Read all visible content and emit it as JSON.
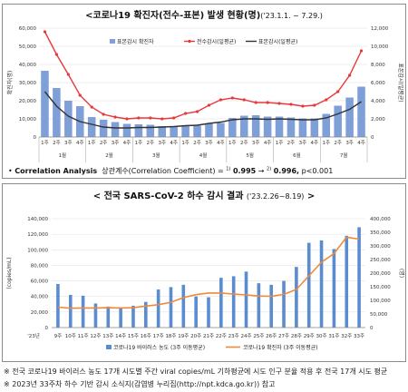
{
  "chart_data": [
    {
      "type": "bar",
      "title": "<코로나19 확진자(전수-표본) 발생 현황(명)",
      "title_sub": "('23.1.1. ~ 7.29.)",
      "ylabel_left": "확진자(명)",
      "ylabel_right": "표본감시(일평균)",
      "ylim_left": [
        0,
        60000
      ],
      "ylim_right": [
        0,
        12000
      ],
      "left_ticks": [
        "0",
        "10,000",
        "20,000",
        "30,000",
        "40,000",
        "50,000",
        "60,000"
      ],
      "right_ticks": [
        "0",
        "2,000",
        "4,000",
        "6,000",
        "8,000",
        "10,000",
        "12,000"
      ],
      "week_labels": [
        "1주",
        "2주",
        "3주",
        "4주",
        "1주",
        "2주",
        "3주",
        "4주",
        "1주",
        "2주",
        "3주",
        "4주",
        "1주",
        "2주",
        "3주",
        "4주",
        "1주",
        "2주",
        "3주",
        "4주",
        "1주",
        "2주",
        "3주",
        "4주",
        "1주",
        "2주",
        "3주",
        "4주"
      ],
      "month_labels": [
        "1월",
        "2월",
        "3월",
        "4월",
        "5월",
        "6월",
        "7월"
      ],
      "series": [
        {
          "name": "표본감시 확진자",
          "kind": "bar",
          "axis": "right",
          "color": "#7f9fd8",
          "values": [
            7300,
            5400,
            4000,
            3400,
            2200,
            1900,
            1650,
            1450,
            1400,
            1350,
            1200,
            1200,
            1250,
            1250,
            1450,
            1550,
            2100,
            2350,
            2400,
            2250,
            2250,
            2150,
            2050,
            2050,
            2550,
            3450,
            4350,
            5550
          ]
        },
        {
          "name": "전수감시(일평균)",
          "kind": "line",
          "axis": "left",
          "color": "#e8383d",
          "values": [
            58000,
            45500,
            34500,
            23000,
            16500,
            12500,
            11000,
            10000,
            10500,
            10500,
            10000,
            10500,
            13000,
            14000,
            17500,
            20500,
            21500,
            20500,
            19000,
            19000,
            18500,
            18000,
            17000,
            17500,
            20500,
            25000,
            34000,
            47500
          ]
        },
        {
          "name": "표본감시(일평균)",
          "kind": "line",
          "axis": "right",
          "color": "#333333",
          "values": [
            5000,
            3400,
            2300,
            1700,
            1400,
            1100,
            1000,
            1000,
            1050,
            1050,
            1100,
            1150,
            1250,
            1300,
            1500,
            1650,
            1900,
            2000,
            2000,
            1950,
            2000,
            1950,
            1900,
            1900,
            2100,
            2550,
            3050,
            3900
          ]
        }
      ],
      "correlation": {
        "label": "Correlation Analysis",
        "text": "상관계수(Correlation Coefficient) = ",
        "sup1": "1)",
        "v1": "0.995",
        "arrow": " → ",
        "sup2": "2)",
        "v2": "0.996,",
        "p": " p<0.001"
      }
    },
    {
      "type": "bar",
      "title": "< 전국 SARS-CoV-2 하수 감시 결과",
      "title_sub": "('23.2.26~8.19)",
      "ylabel_left": "(copies/mL)",
      "ylabel_right": "(명)",
      "ylim_left": [
        0,
        140000
      ],
      "ylim_right": [
        0,
        400000
      ],
      "left_ticks": [
        "0",
        "20,000",
        "40,000",
        "60,000",
        "80,000",
        "100,000",
        "120,000",
        "140,000"
      ],
      "right_ticks": [
        "0",
        "50,000",
        "100,000",
        "150,000",
        "200,000",
        "250,000",
        "300,000",
        "350,000",
        "400,000"
      ],
      "year_label": "'23년",
      "categories": [
        "9주",
        "10주",
        "11주",
        "12주",
        "13주",
        "14주",
        "15주",
        "16주",
        "17주",
        "18주",
        "19주",
        "20주",
        "21주",
        "22주",
        "23주",
        "24주",
        "25주",
        "26주",
        "27주",
        "28주",
        "29주",
        "30주",
        "31주",
        "32주",
        "33주"
      ],
      "series": [
        {
          "name": "코로나19 바이러스 농도 (3주 이동평균)",
          "kind": "bar",
          "axis": "left",
          "color": "#5b8bd0",
          "values": [
            56000,
            42000,
            41000,
            31000,
            27000,
            26000,
            28000,
            33000,
            49000,
            52000,
            55000,
            40000,
            39000,
            64000,
            66000,
            72000,
            57000,
            55000,
            60000,
            78000,
            109000,
            112000,
            101000,
            118000,
            129000
          ]
        },
        {
          "name": "코로나19 확진자 (3주 이동평균)",
          "kind": "line",
          "axis": "right",
          "color": "#ed8a3b",
          "values": [
            75000,
            71000,
            72000,
            72000,
            73000,
            72000,
            73000,
            79000,
            84000,
            93000,
            110000,
            121000,
            127000,
            127000,
            123000,
            120000,
            116000,
            115000,
            122000,
            140000,
            190000,
            240000,
            272000,
            332000,
            325000
          ]
        }
      ]
    }
  ],
  "footnotes": [
    "※ 전국 코로나19 바이러스 농도 17개 시도별 주간 viral copies/mL 기하평균에 시도 인구 분율 적용 후 전국 17개 시도 평균",
    "※ 2023년 33주차 하수 기반 감시 소식지(감염병 누리집(http://npt.kdca.go.kr)) 참고"
  ]
}
